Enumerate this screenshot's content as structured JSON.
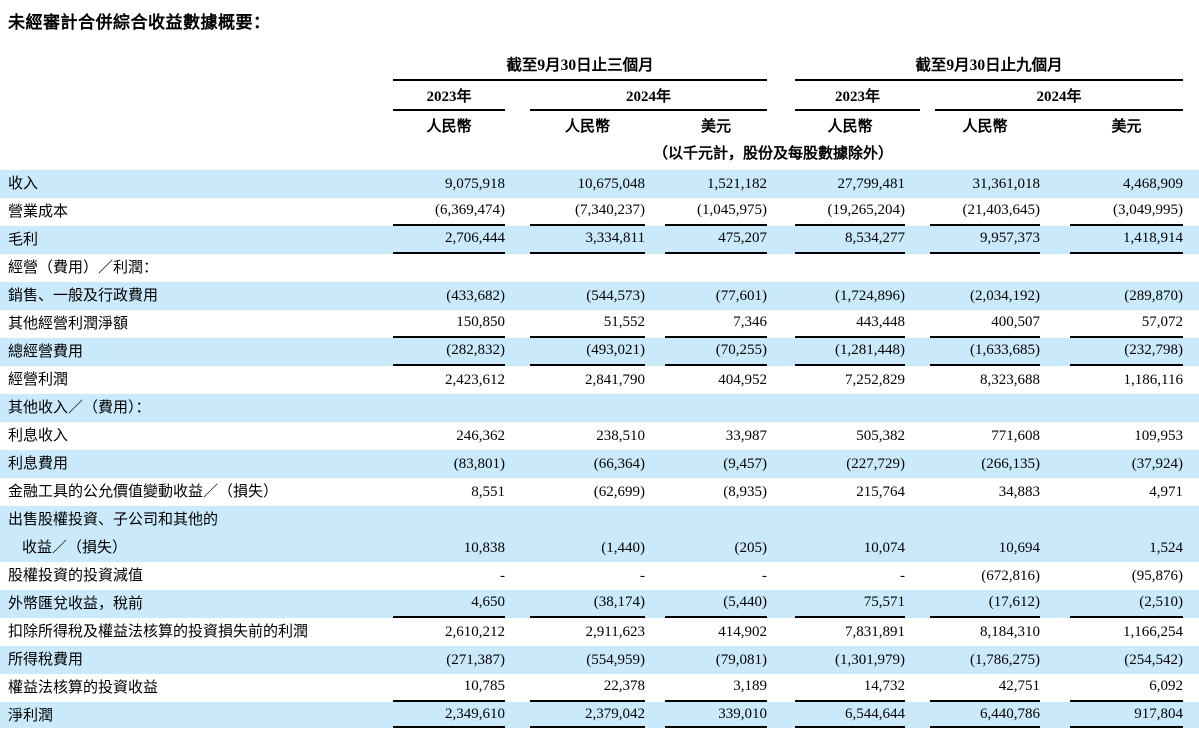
{
  "title": "未經審計合併綜合收益數據概要：",
  "colors": {
    "row_shade": "#cae9fb",
    "rule": "#000000",
    "text": "#000000"
  },
  "header": {
    "period_groups": [
      "截至9月30日止三個月",
      "截至9月30日止九個月"
    ],
    "year_cols": [
      "2023年",
      "2024年",
      "2023年",
      "2024年"
    ],
    "currency_cols": [
      "人民幣",
      "人民幣",
      "美元",
      "人民幣",
      "人民幣",
      "美元"
    ],
    "unit_note": "（以千元計，股份及每股數據除外）"
  },
  "rows": [
    {
      "label": "收入",
      "values": [
        "9,075,918",
        "10,675,048",
        "1,521,182",
        "27,799,481",
        "31,361,018",
        "4,468,909"
      ],
      "shade": true
    },
    {
      "label": "營業成本",
      "values": [
        "(6,369,474)",
        "(7,340,237)",
        "(1,045,975)",
        "(19,265,204)",
        "(21,403,645)",
        "(3,049,995)"
      ],
      "shade": false,
      "underline": true
    },
    {
      "label": "毛利",
      "values": [
        "2,706,444",
        "3,334,811",
        "475,207",
        "8,534,277",
        "9,957,373",
        "1,418,914"
      ],
      "shade": true,
      "underline": true
    },
    {
      "label": "經營（費用）／利潤：",
      "values": [
        "",
        "",
        "",
        "",
        "",
        ""
      ],
      "shade": false
    },
    {
      "label": "銷售、一般及行政費用",
      "values": [
        "(433,682)",
        "(544,573)",
        "(77,601)",
        "(1,724,896)",
        "(2,034,192)",
        "(289,870)"
      ],
      "shade": true
    },
    {
      "label": "其他經營利潤淨額",
      "values": [
        "150,850",
        "51,552",
        "7,346",
        "443,448",
        "400,507",
        "57,072"
      ],
      "shade": false,
      "underline": true
    },
    {
      "label": "總經營費用",
      "values": [
        "(282,832)",
        "(493,021)",
        "(70,255)",
        "(1,281,448)",
        "(1,633,685)",
        "(232,798)"
      ],
      "shade": true,
      "underline": true
    },
    {
      "label": "經營利潤",
      "values": [
        "2,423,612",
        "2,841,790",
        "404,952",
        "7,252,829",
        "8,323,688",
        "1,186,116"
      ],
      "shade": false
    },
    {
      "label": "其他收入／（費用）：",
      "values": [
        "",
        "",
        "",
        "",
        "",
        ""
      ],
      "shade": true
    },
    {
      "label": "利息收入",
      "values": [
        "246,362",
        "238,510",
        "33,987",
        "505,382",
        "771,608",
        "109,953"
      ],
      "shade": false
    },
    {
      "label": "利息費用",
      "values": [
        "(83,801)",
        "(66,364)",
        "(9,457)",
        "(227,729)",
        "(266,135)",
        "(37,924)"
      ],
      "shade": true
    },
    {
      "label": "金融工具的公允價值變動收益／（損失）",
      "values": [
        "8,551",
        "(62,699)",
        "(8,935)",
        "215,764",
        "34,883",
        "4,971"
      ],
      "shade": false
    },
    {
      "label": "出售股權投資、子公司和其他的",
      "label2": "收益／（損失）",
      "values": [
        "10,838",
        "(1,440)",
        "(205)",
        "10,074",
        "10,694",
        "1,524"
      ],
      "shade": true,
      "two_line": true
    },
    {
      "label": "股權投資的投資減值",
      "values": [
        "-",
        "-",
        "-",
        "-",
        "(672,816)",
        "(95,876)"
      ],
      "shade": false
    },
    {
      "label": "外幣匯兌收益，稅前",
      "values": [
        "4,650",
        "(38,174)",
        "(5,440)",
        "75,571",
        "(17,612)",
        "(2,510)"
      ],
      "shade": true,
      "underline": true
    },
    {
      "label": "扣除所得稅及權益法核算的投資損失前的利潤",
      "values": [
        "2,610,212",
        "2,911,623",
        "414,902",
        "7,831,891",
        "8,184,310",
        "1,166,254"
      ],
      "shade": false
    },
    {
      "label": "所得稅費用",
      "values": [
        "(271,387)",
        "(554,959)",
        "(79,081)",
        "(1,301,979)",
        "(1,786,275)",
        "(254,542)"
      ],
      "shade": true
    },
    {
      "label": "權益法核算的投資收益",
      "values": [
        "10,785",
        "22,378",
        "3,189",
        "14,732",
        "42,751",
        "6,092"
      ],
      "shade": false,
      "underline": true
    },
    {
      "label": "淨利潤",
      "values": [
        "2,349,610",
        "2,379,042",
        "339,010",
        "6,544,644",
        "6,440,786",
        "917,804"
      ],
      "shade": true,
      "underline": true,
      "last": true
    }
  ]
}
